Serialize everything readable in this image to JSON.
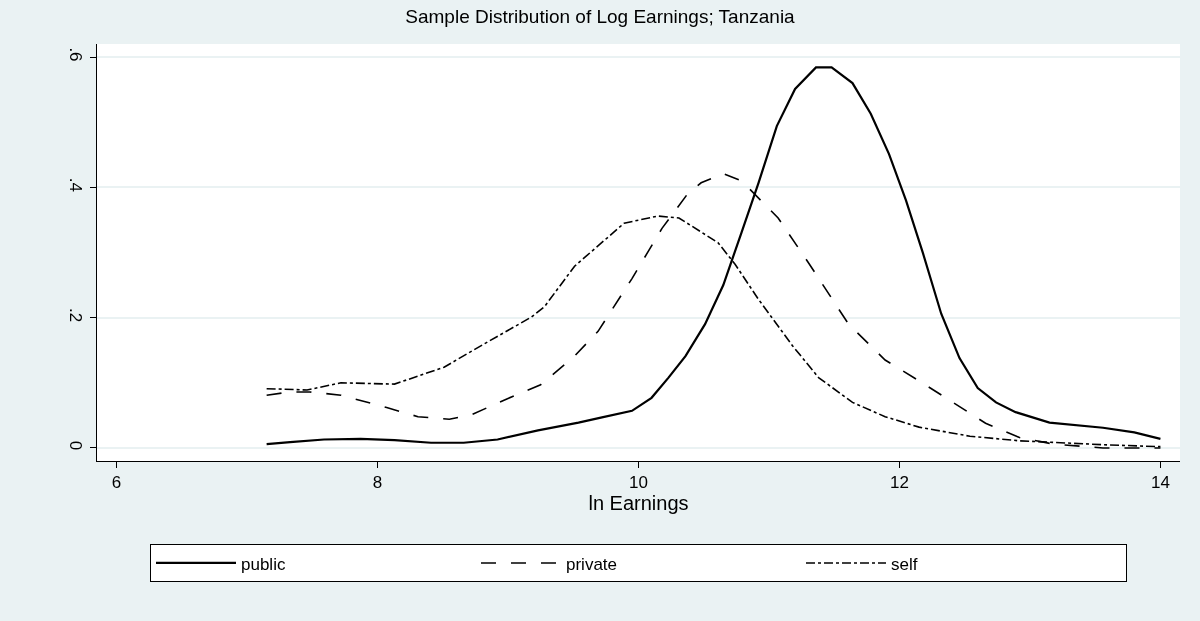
{
  "chart_data": {
    "type": "line",
    "title": "Sample Distribution of Log Earnings; Tanzania",
    "xlabel": "ln Earnings",
    "xlim": [
      5.85,
      14.15
    ],
    "xticks": [
      6,
      8,
      10,
      12,
      14
    ],
    "ylim": [
      -0.02,
      0.62
    ],
    "yticks": [
      {
        "value": 0,
        "label": "0"
      },
      {
        "value": 0.2,
        "label": ".2"
      },
      {
        "value": 0.4,
        "label": ".4"
      },
      {
        "value": 0.6,
        "label": ".6"
      }
    ],
    "grid": "y",
    "legend": "bottom",
    "marker": "none",
    "series": [
      {
        "name": "public",
        "color": "#000000",
        "line_style": "solid",
        "x": [
          7.15,
          7.33,
          7.59,
          7.87,
          8.13,
          8.41,
          8.66,
          8.92,
          9.23,
          9.54,
          9.72,
          9.95,
          10.1,
          10.23,
          10.36,
          10.51,
          10.65,
          10.79,
          10.92,
          11.06,
          11.2,
          11.36,
          11.48,
          11.64,
          11.78,
          11.92,
          12.05,
          12.18,
          12.32,
          12.46,
          12.6,
          12.74,
          12.89,
          13.15,
          13.56,
          13.8,
          14.0
        ],
        "values": [
          0.006,
          0.009,
          0.013,
          0.014,
          0.012,
          0.008,
          0.008,
          0.013,
          0.027,
          0.039,
          0.047,
          0.057,
          0.077,
          0.108,
          0.141,
          0.19,
          0.25,
          0.331,
          0.407,
          0.494,
          0.551,
          0.584,
          0.584,
          0.56,
          0.513,
          0.451,
          0.38,
          0.299,
          0.206,
          0.138,
          0.092,
          0.07,
          0.055,
          0.039,
          0.031,
          0.024,
          0.014
        ]
      },
      {
        "name": "private",
        "color": "#000000",
        "line_style": "dashed",
        "x": [
          7.15,
          7.33,
          7.48,
          7.72,
          8.07,
          8.31,
          8.55,
          8.72,
          9.0,
          9.25,
          9.51,
          9.69,
          9.95,
          10.18,
          10.38,
          10.48,
          10.65,
          10.79,
          11.07,
          11.31,
          11.61,
          11.89,
          12.15,
          12.41,
          12.66,
          12.92,
          13.18,
          13.56,
          14.0
        ],
        "values": [
          0.081,
          0.086,
          0.086,
          0.081,
          0.062,
          0.048,
          0.044,
          0.051,
          0.076,
          0.097,
          0.141,
          0.179,
          0.26,
          0.337,
          0.391,
          0.407,
          0.421,
          0.41,
          0.353,
          0.282,
          0.19,
          0.135,
          0.103,
          0.07,
          0.038,
          0.016,
          0.006,
          0.0,
          0.0
        ]
      },
      {
        "name": "self",
        "color": "#000000",
        "line_style": "dashdot",
        "x": [
          7.15,
          7.46,
          7.72,
          8.13,
          8.51,
          8.82,
          9.18,
          9.28,
          9.51,
          9.89,
          10.15,
          10.31,
          10.61,
          10.74,
          10.92,
          11.18,
          11.38,
          11.64,
          11.89,
          12.15,
          12.54,
          12.92,
          13.56,
          14.0
        ],
        "values": [
          0.091,
          0.089,
          0.1,
          0.098,
          0.124,
          0.16,
          0.201,
          0.217,
          0.279,
          0.345,
          0.356,
          0.353,
          0.315,
          0.282,
          0.228,
          0.157,
          0.108,
          0.07,
          0.048,
          0.032,
          0.018,
          0.011,
          0.005,
          0.002
        ]
      }
    ]
  }
}
